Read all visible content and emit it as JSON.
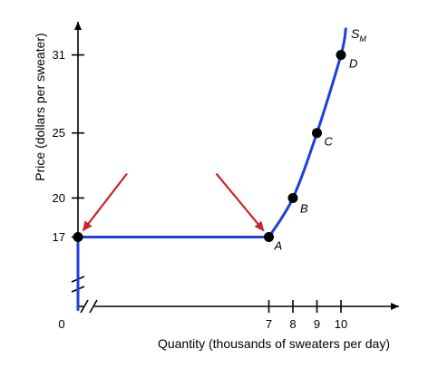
{
  "chart_data": {
    "type": "line",
    "xlabel": "Quantity (thousands of sweaters per day)",
    "ylabel": "Price (dollars per sweater)",
    "origin_label": "0",
    "x_ticks": [
      7,
      8,
      9,
      10
    ],
    "y_ticks": [
      17,
      20,
      25,
      31
    ],
    "series": [
      {
        "name": "S",
        "subscript": "M",
        "color": "#1f3fe0",
        "points": [
          {
            "x": 0,
            "y": 12
          },
          {
            "x": 0,
            "y": 17
          },
          {
            "x": 7,
            "y": 17
          },
          {
            "x": 8,
            "y": 20
          },
          {
            "x": 9,
            "y": 25
          },
          {
            "x": 10,
            "y": 31
          },
          {
            "x": 10.2,
            "y": 33
          }
        ]
      }
    ],
    "labeled_points": [
      {
        "label": "A",
        "x": 7,
        "y": 17
      },
      {
        "label": "B",
        "x": 8,
        "y": 20
      },
      {
        "label": "C",
        "x": 9,
        "y": 25
      },
      {
        "label": "D",
        "x": 10,
        "y": 31
      }
    ],
    "marked_points": [
      {
        "x": 0,
        "y": 17
      }
    ],
    "arrows": [
      {
        "target": {
          "x": 0,
          "y": 17
        },
        "color": "#c8242b"
      },
      {
        "target": {
          "x": 7,
          "y": 17
        },
        "color": "#c8242b"
      }
    ],
    "axis_breaks": [
      "x",
      "y"
    ]
  }
}
